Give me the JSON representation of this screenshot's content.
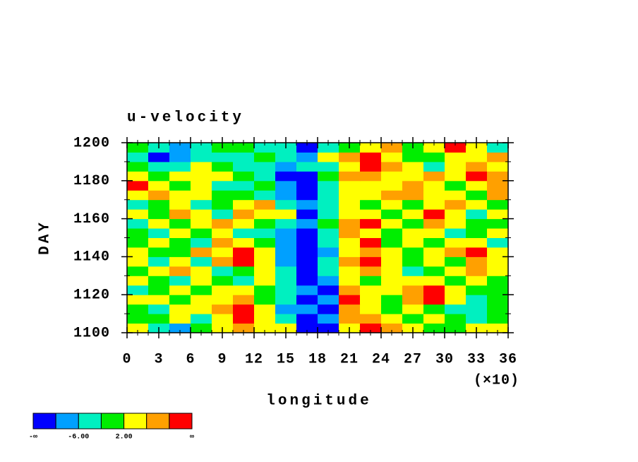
{
  "chart_data": {
    "type": "contour",
    "title": "u-velocity",
    "xlabel": "longitude",
    "ylabel": "DAY",
    "x_multiplier": "(×10)",
    "xlim": [
      0,
      36
    ],
    "ylim": [
      1100,
      1200
    ],
    "xticks": [
      0,
      3,
      6,
      9,
      12,
      15,
      18,
      21,
      24,
      27,
      30,
      33,
      36
    ],
    "xminorticks": [
      1,
      2,
      4,
      5,
      7,
      8,
      10,
      11,
      13,
      14,
      16,
      17,
      19,
      20,
      22,
      23,
      25,
      26,
      28,
      29,
      31,
      32,
      34,
      35
    ],
    "yticks": [
      1100,
      1120,
      1140,
      1160,
      1180,
      1200
    ],
    "yminorticks": [
      1110,
      1130,
      1150,
      1170,
      1190
    ],
    "x": [
      1,
      3,
      5,
      7,
      9,
      11,
      13,
      15,
      17,
      19,
      21,
      23,
      25,
      27,
      29,
      31,
      33,
      35
    ],
    "y": [
      1102.5,
      1107.5,
      1112.5,
      1117.5,
      1122.5,
      1127.5,
      1132.5,
      1137.5,
      1142.5,
      1147.5,
      1152.5,
      1157.5,
      1162.5,
      1167.5,
      1172.5,
      1177.5,
      1182.5,
      1187.5,
      1192.5,
      1197.5
    ],
    "z": [
      [
        3,
        -4,
        -7,
        1,
        4,
        8,
        5,
        2,
        -12,
        -13,
        2,
        11,
        6,
        3,
        1,
        -1,
        2,
        5
      ],
      [
        -2,
        1,
        3,
        -3,
        2,
        11,
        3,
        -3,
        -11,
        -8,
        6,
        8,
        2,
        -1,
        4,
        0,
        -3,
        1
      ],
      [
        1,
        -5,
        2,
        5,
        8,
        12,
        4,
        -7,
        -9,
        -12,
        9,
        4,
        -2,
        3,
        1,
        -4,
        -6,
        -2
      ],
      [
        4,
        2,
        -1,
        3,
        5,
        7,
        -2,
        -4,
        -13,
        -9,
        11,
        3,
        1,
        6,
        12,
        2,
        -3,
        0
      ],
      [
        -3,
        1,
        4,
        -2,
        3,
        5,
        1,
        -6,
        -8,
        -11,
        7,
        5,
        3,
        8,
        11,
        4,
        1,
        -2
      ],
      [
        2,
        -2,
        -5,
        4,
        1,
        -3,
        3,
        -5,
        -11,
        -7,
        5,
        -1,
        2,
        4,
        3,
        -2,
        4,
        1
      ],
      [
        -1,
        3,
        6,
        2,
        -4,
        1,
        5,
        -3,
        -12,
        -6,
        4,
        8,
        2,
        -3,
        -1,
        3,
        6,
        2
      ],
      [
        3,
        -3,
        2,
        -5,
        7,
        11,
        2,
        -9,
        -13,
        -4,
        6,
        12,
        5,
        1,
        4,
        -2,
        7,
        3
      ],
      [
        5,
        1,
        -2,
        8,
        3,
        10,
        4,
        -7,
        -12,
        -8,
        3,
        9,
        4,
        -2,
        2,
        6,
        11,
        5
      ],
      [
        -2,
        4,
        1,
        -3,
        9,
        2,
        -1,
        -10,
        -13,
        -5,
        5,
        10,
        1,
        3,
        -1,
        4,
        2,
        -3
      ],
      [
        1,
        -3,
        3,
        -1,
        2,
        -4,
        -6,
        -8,
        -11,
        -3,
        7,
        4,
        -2,
        5,
        2,
        -3,
        1,
        4
      ],
      [
        -4,
        2,
        -2,
        5,
        6,
        3,
        1,
        -5,
        -10,
        -2,
        9,
        11,
        3,
        -1,
        6,
        4,
        -2,
        1
      ],
      [
        2,
        -2,
        6,
        3,
        -3,
        7,
        4,
        2,
        -11,
        -4,
        2,
        5,
        -1,
        4,
        11,
        3,
        -3,
        2
      ],
      [
        -3,
        1,
        3,
        -6,
        1,
        4,
        8,
        -3,
        -9,
        -6,
        4,
        1,
        3,
        -2,
        3,
        7,
        5,
        -1
      ],
      [
        4,
        7,
        2,
        5,
        1,
        -2,
        -5,
        -7,
        -12,
        -3,
        5,
        3,
        6,
        9,
        4,
        2,
        -1,
        6
      ],
      [
        11,
        4,
        -1,
        2,
        -3,
        -5,
        -2,
        -10,
        -13,
        -5,
        2,
        5,
        4,
        7,
        2,
        1,
        4,
        8
      ],
      [
        3,
        1,
        5,
        2,
        4,
        1,
        -3,
        -12,
        -11,
        -2,
        6,
        9,
        3,
        5,
        8,
        3,
        11,
        9
      ],
      [
        -2,
        -5,
        -3,
        2,
        -1,
        -4,
        -6,
        -8,
        -6,
        -3,
        4,
        12,
        7,
        2,
        -3,
        3,
        6,
        2
      ],
      [
        -6,
        -11,
        -7,
        -4,
        -5,
        -3,
        -2,
        -4,
        -9,
        3,
        8,
        13,
        5,
        -2,
        1,
        4,
        2,
        6
      ],
      [
        1,
        -3,
        -8,
        -5,
        -2,
        0,
        -6,
        -3,
        -13,
        -5,
        1,
        4,
        9,
        -1,
        3,
        11,
        2,
        -4
      ]
    ],
    "colorbar": {
      "colors": [
        "#0000ff",
        "#00a0ff",
        "#00f0c0",
        "#00ee00",
        "#ffff00",
        "#ffa000",
        "#ff0000"
      ],
      "levels": [
        -10,
        -6,
        -2,
        2,
        6,
        10
      ],
      "ticks": [
        {
          "value": -6,
          "label": "-6.00"
        },
        {
          "value": 2,
          "label": "2.00"
        }
      ],
      "low_label": "-∞",
      "high_label": "∞"
    }
  }
}
